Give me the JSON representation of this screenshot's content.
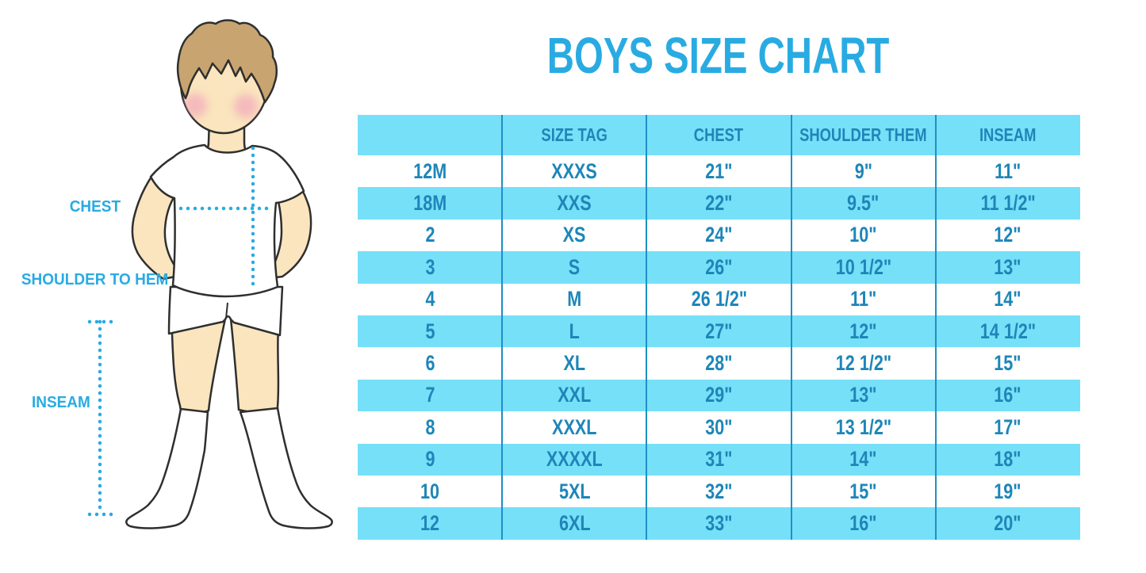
{
  "title": "BOYS SIZE CHART",
  "figure": {
    "labels": {
      "chest": "CHEST",
      "shoulder_to_hem": "SHOULDER TO HEM",
      "inseam": "INSEAM"
    }
  },
  "colors": {
    "accent": "#29ABE2",
    "table_text": "#1D86B8",
    "row_blue": "#76E0F9",
    "divider": "#1F8FC4",
    "skin": "#FAE5BE",
    "hair": "#C8A471",
    "blush": "#F2A4BC",
    "outline": "#2F2F2F"
  },
  "chart_data": {
    "type": "table",
    "title": "BOYS SIZE CHART",
    "columns": [
      "",
      "SIZE TAG",
      "CHEST",
      "SHOULDER THEM",
      "INSEAM"
    ],
    "rows": [
      [
        "12M",
        "XXXS",
        "21\"",
        "9\"",
        "11\""
      ],
      [
        "18M",
        "XXS",
        "22\"",
        "9.5\"",
        "11 1/2\""
      ],
      [
        "2",
        "XS",
        "24\"",
        "10\"",
        "12\""
      ],
      [
        "3",
        "S",
        "26\"",
        "10 1/2\"",
        "13\""
      ],
      [
        "4",
        "M",
        "26 1/2\"",
        "11\"",
        "14\""
      ],
      [
        "5",
        "L",
        "27\"",
        "12\"",
        "14 1/2\""
      ],
      [
        "6",
        "XL",
        "28\"",
        "12 1/2\"",
        "15\""
      ],
      [
        "7",
        "XXL",
        "29\"",
        "13\"",
        "16\""
      ],
      [
        "8",
        "XXXL",
        "30\"",
        "13 1/2\"",
        "17\""
      ],
      [
        "9",
        "XXXXL",
        "31\"",
        "14\"",
        "18\""
      ],
      [
        "10",
        "5XL",
        "32\"",
        "15\"",
        "19\""
      ],
      [
        "12",
        "6XL",
        "33\"",
        "16\"",
        "20\""
      ]
    ]
  }
}
